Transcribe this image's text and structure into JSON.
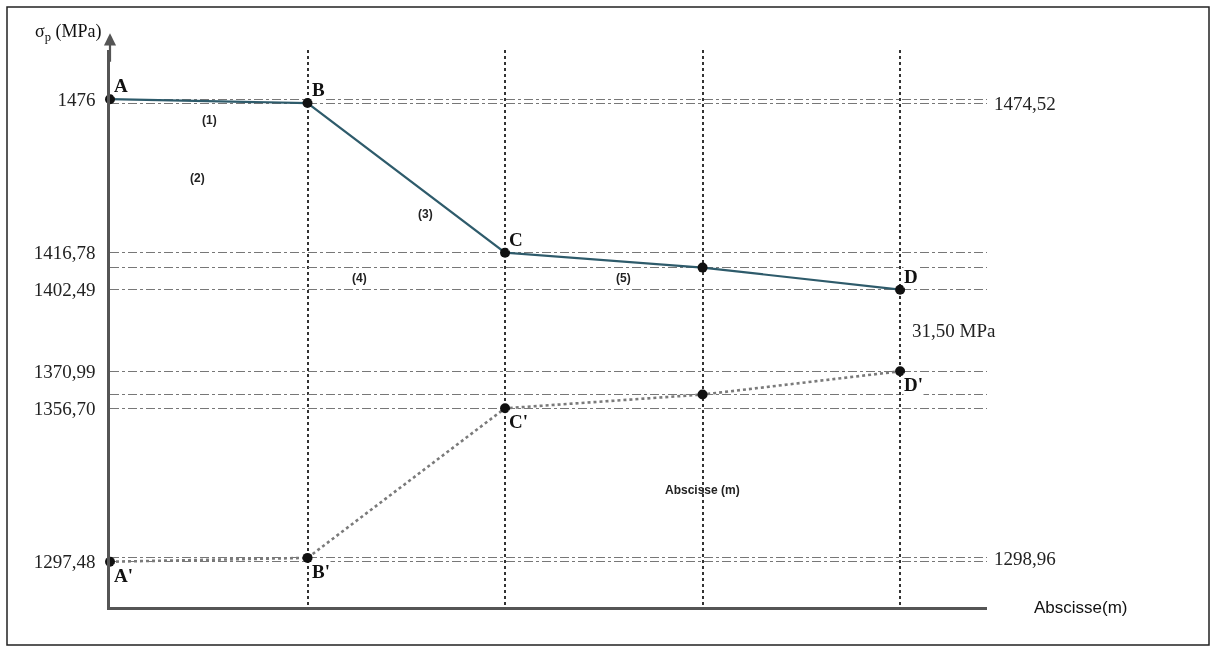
{
  "chart_data": {
    "type": "line",
    "ylabel": "σ$_{p}$ (MPa)",
    "xlabel": "Abscisse(m)",
    "categories": [
      null,
      null,
      null,
      null,
      null
    ],
    "series": [
      {
        "color": "#2e5b6b",
        "values": [
          1476,
          1474.52,
          1416.78,
          1411,
          1402.49
        ],
        "line_style": "solid"
      },
      {
        "color": "#7a7a7a",
        "values": [
          1297.48,
          1298.96,
          1356.7,
          1362,
          1370.99
        ],
        "line_style": "dotted"
      }
    ],
    "ylim": [
      1280,
      1495
    ],
    "yticks": [
      1476,
      {
        "value": 1416.78,
        "label": "1416,78"
      },
      {
        "value": 1411,
        "label": null
      },
      {
        "value": 1402.49,
        "label": "1402,49"
      },
      {
        "value": 1370.99,
        "label": "1370,99"
      },
      {
        "value": 1362,
        "label": null
      },
      {
        "value": 1356.7,
        "label": "1356,70"
      },
      {
        "value": 1297.48,
        "label": "1297,48"
      }
    ],
    "y2lim": [
      1280,
      1495
    ],
    "y2ticks": [
      {
        "value": 1474.52,
        "label": "1474,52"
      },
      {
        "value": 1298.96,
        "label": "1298,96"
      }
    ],
    "grid": true,
    "marker": "circle",
    "annotations": [
      "A",
      "B",
      "C",
      "D",
      "A'",
      "B'",
      "C'",
      "D'",
      "(1)",
      "(2)",
      "(3)",
      "(4)",
      "(5)",
      "31,50 MPa",
      "Abscisse (m)"
    ]
  }
}
